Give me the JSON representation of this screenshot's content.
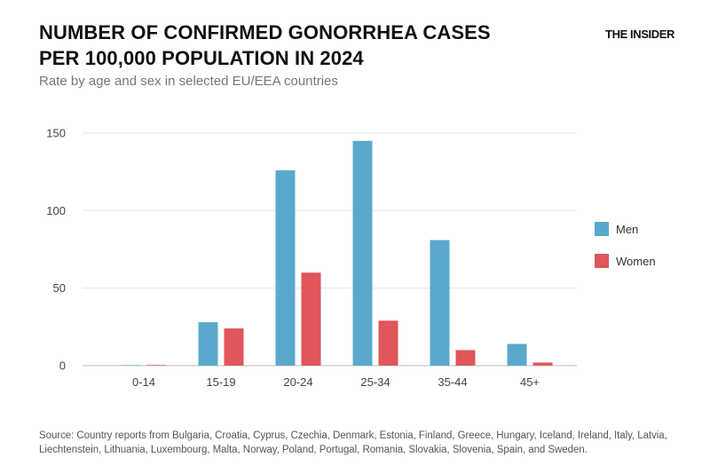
{
  "header": {
    "title": "NUMBER OF CONFIRMED GONORRHEA CASES PER 100,000 POPULATION IN 2024",
    "subtitle": "Rate by age and sex in selected EU/EEA countries",
    "brand": "THE INSIDER"
  },
  "footer": {
    "source": "Source: Country reports from Bulgaria, Croatia, Cyprus, Czechia, Denmark, Estonia, Finland, Greece, Hungary, Iceland, Ireland, Italy, Latvia, Liechtenstein, Lithuania, Luxembourg, Malta, Norway, Poland, Portugal, Romania, Slovakia, Slovenia, Spain, and Sweden."
  },
  "chart_data": {
    "type": "bar",
    "title": "NUMBER OF CONFIRMED GONORRHEA CASES PER 100,000 POPULATION IN 2024",
    "subtitle": "Rate by age and sex in selected EU/EEA countries",
    "categories": [
      "0-14",
      "15-19",
      "20-24",
      "25-34",
      "35-44",
      "45+"
    ],
    "series": [
      {
        "name": "Men",
        "color": "#5aa9cc",
        "values": [
          0.3,
          28,
          126,
          145,
          81,
          14
        ]
      },
      {
        "name": "Women",
        "color": "#e0565a",
        "values": [
          0.4,
          24,
          60,
          29,
          10,
          2
        ]
      }
    ],
    "ylim": [
      0,
      150
    ],
    "yticks": [
      0,
      50,
      100,
      150
    ],
    "xlabel": "",
    "ylabel": "",
    "grid": true,
    "legend_position": "right"
  }
}
